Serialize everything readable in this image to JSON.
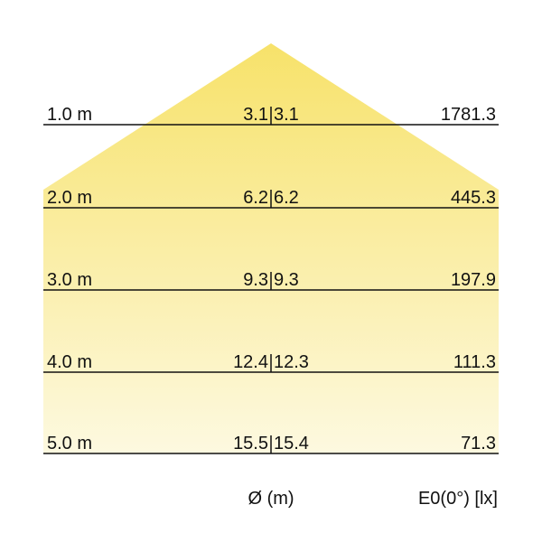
{
  "colors": {
    "cone_top": "#f7e26a",
    "cone_bottom": "#fdf9e0",
    "line": "#111111"
  },
  "rows": [
    {
      "distance": "1.0 m",
      "diameter_a": "3.1",
      "diameter_b": "3.1",
      "illuminance": "1781.3"
    },
    {
      "distance": "2.0 m",
      "diameter_a": "6.2",
      "diameter_b": "6.2",
      "illuminance": "445.3"
    },
    {
      "distance": "3.0 m",
      "diameter_a": "9.3",
      "diameter_b": "9.3",
      "illuminance": "197.9"
    },
    {
      "distance": "4.0 m",
      "diameter_a": "12.4",
      "diameter_b": "12.3",
      "illuminance": "111.3"
    },
    {
      "distance": "5.0 m",
      "diameter_a": "15.5",
      "diameter_b": "15.4",
      "illuminance": "71.3"
    }
  ],
  "footer": {
    "diameter_label": "Ø (m)",
    "illuminance_label": "E0(0°) [lx]"
  }
}
